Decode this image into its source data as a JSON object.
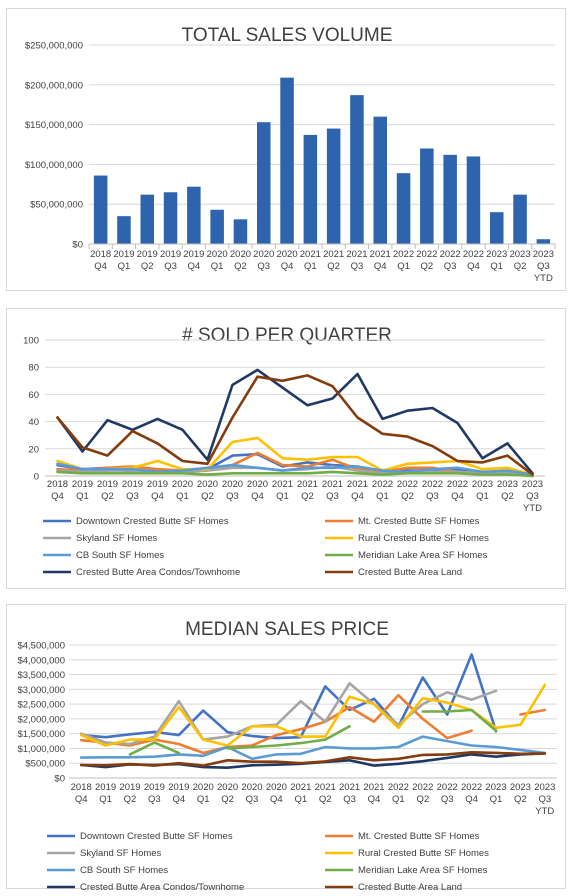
{
  "chart_data": [
    {
      "type": "bar",
      "title": "TOTAL SALES VOLUME",
      "categories": [
        [
          "2018",
          "Q4"
        ],
        [
          "2019",
          "Q1"
        ],
        [
          "2019",
          "Q2"
        ],
        [
          "2019",
          "Q3"
        ],
        [
          "2019",
          "Q4"
        ],
        [
          "2020",
          "Q1"
        ],
        [
          "2020",
          "Q2"
        ],
        [
          "2020",
          "Q3"
        ],
        [
          "2020",
          "Q4"
        ],
        [
          "2021",
          "Q1"
        ],
        [
          "2021",
          "Q2"
        ],
        [
          "2021",
          "Q3"
        ],
        [
          "2021",
          "Q4"
        ],
        [
          "2022",
          "Q1"
        ],
        [
          "2022",
          "Q2"
        ],
        [
          "2022",
          "Q3"
        ],
        [
          "2022",
          "Q4"
        ],
        [
          "2023",
          "Q1"
        ],
        [
          "2023",
          "Q2"
        ],
        [
          "2023",
          "Q3",
          "YTD"
        ]
      ],
      "values": [
        86000000,
        35000000,
        62000000,
        65000000,
        72000000,
        43000000,
        31000000,
        153000000,
        209000000,
        137000000,
        145000000,
        187000000,
        160000000,
        89000000,
        120000000,
        112000000,
        110000000,
        40000000,
        62000000,
        6000000
      ],
      "ylim": [
        0,
        250000000
      ],
      "yticks": [
        0,
        50000000,
        100000000,
        150000000,
        200000000,
        250000000
      ],
      "ytick_labels": [
        "$0",
        "$50,000,000",
        "$100,000,000",
        "$150,000,000",
        "$200,000,000",
        "$250,000,000"
      ],
      "bar_color": "#2e64ad",
      "grid": true
    },
    {
      "type": "line",
      "title": "# SOLD PER QUARTER",
      "categories": [
        [
          "2018",
          "Q4"
        ],
        [
          "2019",
          "Q1"
        ],
        [
          "2019",
          "Q2"
        ],
        [
          "2019",
          "Q3"
        ],
        [
          "2019",
          "Q4"
        ],
        [
          "2020",
          "Q1"
        ],
        [
          "2020",
          "Q2"
        ],
        [
          "2020",
          "Q3"
        ],
        [
          "2020",
          "Q4"
        ],
        [
          "2021",
          "Q1"
        ],
        [
          "2021",
          "Q2"
        ],
        [
          "2021",
          "Q3"
        ],
        [
          "2021",
          "Q4"
        ],
        [
          "2022",
          "Q1"
        ],
        [
          "2022",
          "Q2"
        ],
        [
          "2022",
          "Q3"
        ],
        [
          "2022",
          "Q4"
        ],
        [
          "2023",
          "Q1"
        ],
        [
          "2023",
          "Q2"
        ],
        [
          "2023",
          "Q3",
          "YTD"
        ]
      ],
      "ylim": [
        0,
        100
      ],
      "yticks": [
        0,
        20,
        40,
        60,
        80,
        100
      ],
      "ytick_labels": [
        "0",
        "20",
        "40",
        "60",
        "80",
        "100"
      ],
      "legend_position": "bottom",
      "series": [
        {
          "name": "Downtown Crested Butte SF Homes",
          "color": "#4472c4",
          "values": [
            8,
            5,
            6,
            3,
            4,
            3,
            5,
            15,
            16,
            7,
            10,
            8,
            7,
            3,
            4,
            4,
            5,
            3,
            3,
            0
          ]
        },
        {
          "name": "Mt. Crested Butte SF Homes",
          "color": "#ed7d31",
          "values": [
            5,
            4,
            6,
            7,
            5,
            4,
            5,
            8,
            17,
            8,
            7,
            12,
            5,
            3,
            6,
            6,
            3,
            2,
            3,
            0
          ]
        },
        {
          "name": "Skyland SF Homes",
          "color": "#a5a5a5",
          "values": [
            4,
            3,
            4,
            4,
            3,
            3,
            4,
            6,
            6,
            4,
            5,
            7,
            4,
            2,
            3,
            3,
            3,
            2,
            2,
            0
          ]
        },
        {
          "name": "Rural Crested Butte SF Homes",
          "color": "#ffc000",
          "values": [
            11,
            5,
            5,
            6,
            11,
            5,
            5,
            25,
            28,
            13,
            12,
            14,
            14,
            4,
            9,
            10,
            11,
            5,
            6,
            1
          ]
        },
        {
          "name": "CB South SF Homes",
          "color": "#5b9bd5",
          "values": [
            9,
            5,
            5,
            5,
            3,
            4,
            6,
            8,
            6,
            4,
            6,
            6,
            7,
            4,
            3,
            5,
            6,
            3,
            4,
            1
          ]
        },
        {
          "name": "Meridian Lake Area SF Homes",
          "color": "#70ad47",
          "values": [
            3,
            2,
            2,
            2,
            2,
            2,
            1,
            2,
            2,
            2,
            2,
            3,
            2,
            1,
            2,
            2,
            2,
            1,
            1,
            0
          ]
        },
        {
          "name": "Crested Butte Area Condos/Townhome",
          "color": "#203864",
          "values": [
            43,
            18,
            41,
            34,
            42,
            34,
            12,
            67,
            78,
            65,
            52,
            57,
            75,
            42,
            48,
            50,
            39,
            13,
            24,
            2
          ]
        },
        {
          "name": "Crested Butte Area Land",
          "color": "#843c0c",
          "values": [
            43,
            21,
            15,
            33,
            24,
            11,
            9,
            43,
            73,
            70,
            74,
            66,
            43,
            31,
            29,
            22,
            11,
            10,
            15,
            1
          ]
        }
      ]
    },
    {
      "type": "line",
      "title": "MEDIAN SALES PRICE",
      "categories": [
        [
          "2018",
          "Q4"
        ],
        [
          "2019",
          "Q1"
        ],
        [
          "2019",
          "Q2"
        ],
        [
          "2019",
          "Q3"
        ],
        [
          "2019",
          "Q4"
        ],
        [
          "2020",
          "Q1"
        ],
        [
          "2020",
          "Q2"
        ],
        [
          "2020",
          "Q3"
        ],
        [
          "2020",
          "Q4"
        ],
        [
          "2021",
          "Q1"
        ],
        [
          "2021",
          "Q2"
        ],
        [
          "2021",
          "Q3"
        ],
        [
          "2021",
          "Q4"
        ],
        [
          "2022",
          "Q1"
        ],
        [
          "2022",
          "Q2"
        ],
        [
          "2022",
          "Q3"
        ],
        [
          "2022",
          "Q4"
        ],
        [
          "2023",
          "Q1"
        ],
        [
          "2023",
          "Q2"
        ],
        [
          "2023",
          "Q3",
          "YTD"
        ]
      ],
      "ylim": [
        0,
        4500000
      ],
      "yticks": [
        0,
        500000,
        1000000,
        1500000,
        2000000,
        2500000,
        3000000,
        3500000,
        4000000,
        4500000
      ],
      "ytick_labels": [
        "$0",
        "$500,000",
        "$1,000,000",
        "$1,500,000",
        "$2,000,000",
        "$2,500,000",
        "$3,000,000",
        "$3,500,000",
        "$4,000,000",
        "$4,500,000"
      ],
      "legend_position": "bottom",
      "series": [
        {
          "name": "Downtown Crested Butte SF Homes",
          "color": "#4472c4",
          "values": [
            1450000,
            1380000,
            1480000,
            1560000,
            1450000,
            2280000,
            1550000,
            1420000,
            1350000,
            1380000,
            3100000,
            2300000,
            2680000,
            1750000,
            3400000,
            2150000,
            4180000,
            1580000,
            null,
            null
          ]
        },
        {
          "name": "Mt. Crested Butte SF Homes",
          "color": "#ed7d31",
          "values": [
            1280000,
            1200000,
            1100000,
            1300000,
            1150000,
            850000,
            1050000,
            1100000,
            1450000,
            1650000,
            1900000,
            2400000,
            1900000,
            2800000,
            2000000,
            1350000,
            1600000,
            null,
            2150000,
            2300000
          ]
        },
        {
          "name": "Skyland SF Homes",
          "color": "#a5a5a5",
          "values": [
            1500000,
            1200000,
            1150000,
            1400000,
            2600000,
            1300000,
            1400000,
            1750000,
            1800000,
            2600000,
            1900000,
            3200000,
            2500000,
            1800000,
            2500000,
            2900000,
            2650000,
            2950000,
            null,
            null
          ]
        },
        {
          "name": "Rural Crested Butte SF Homes",
          "color": "#ffc000",
          "values": [
            1450000,
            1100000,
            1300000,
            1300000,
            2400000,
            1300000,
            1100000,
            1750000,
            1750000,
            1400000,
            1400000,
            2750000,
            2500000,
            1700000,
            2700000,
            2550000,
            2300000,
            1700000,
            1800000,
            3150000
          ]
        },
        {
          "name": "CB South SF Homes",
          "color": "#5b9bd5",
          "values": [
            690000,
            700000,
            700000,
            720000,
            800000,
            750000,
            1050000,
            650000,
            800000,
            820000,
            1050000,
            1000000,
            1000000,
            1050000,
            1400000,
            1250000,
            1100000,
            1050000,
            950000,
            850000
          ]
        },
        {
          "name": "Meridian Lake Area SF Homes",
          "color": "#70ad47",
          "values": [
            null,
            null,
            800000,
            1200000,
            850000,
            null,
            1000000,
            1050000,
            1100000,
            1180000,
            1300000,
            1750000,
            null,
            null,
            2250000,
            2250000,
            2300000,
            1600000,
            null,
            null
          ]
        },
        {
          "name": "Crested Butte Area Condos/Townhome",
          "color": "#203864",
          "values": [
            440000,
            370000,
            460000,
            440000,
            470000,
            370000,
            350000,
            430000,
            450000,
            480000,
            540000,
            600000,
            420000,
            480000,
            570000,
            680000,
            800000,
            720000,
            800000,
            830000
          ]
        },
        {
          "name": "Crested Butte Area Land",
          "color": "#843c0c",
          "values": [
            440000,
            430000,
            470000,
            420000,
            500000,
            420000,
            600000,
            550000,
            550000,
            500000,
            560000,
            700000,
            600000,
            650000,
            780000,
            800000,
            870000,
            850000,
            820000,
            830000
          ]
        }
      ]
    }
  ]
}
